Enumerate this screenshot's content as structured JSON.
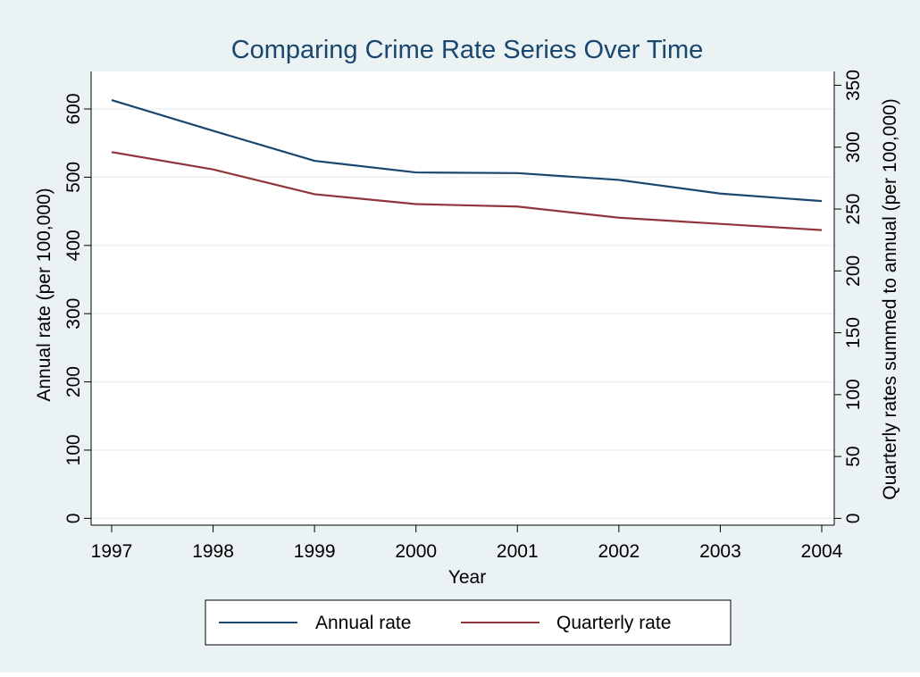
{
  "chart_data": {
    "type": "line",
    "title": "Comparing Crime Rate Series Over Time",
    "xlabel": "Year",
    "ylabel": "Annual rate (per 100,000)",
    "y2label": "Quarterly rates summed to annual (per 100,000)",
    "x": [
      1997,
      1998,
      1999,
      2000,
      2001,
      2002,
      2003,
      2004
    ],
    "x_ticks": [
      "1997",
      "1998",
      "1999",
      "2000",
      "2001",
      "2002",
      "2003",
      "2004"
    ],
    "ylim": [
      -10,
      655
    ],
    "y_ticks": [
      "0",
      "100",
      "200",
      "300",
      "400",
      "500",
      "600"
    ],
    "y2lim": [
      -5.5,
      361.2
    ],
    "y2_ticks": [
      "0",
      "50",
      "100",
      "150",
      "200",
      "250",
      "300",
      "350"
    ],
    "grid": true,
    "legend_position": "bottom",
    "series": [
      {
        "name": "Annual rate",
        "axis": "left",
        "color": "#1a476f",
        "values": [
          613,
          568,
          524,
          507,
          506,
          496,
          476,
          465
        ]
      },
      {
        "name": "Quarterly rate",
        "axis": "right",
        "color": "#90353b",
        "values": [
          296,
          282,
          262,
          254,
          252,
          243,
          238,
          233
        ]
      }
    ]
  },
  "colors": {
    "outer_background": "#eaf2f3",
    "plot_background": "#ffffff",
    "grid": "#eaf2f3",
    "title": "#1a476f"
  }
}
